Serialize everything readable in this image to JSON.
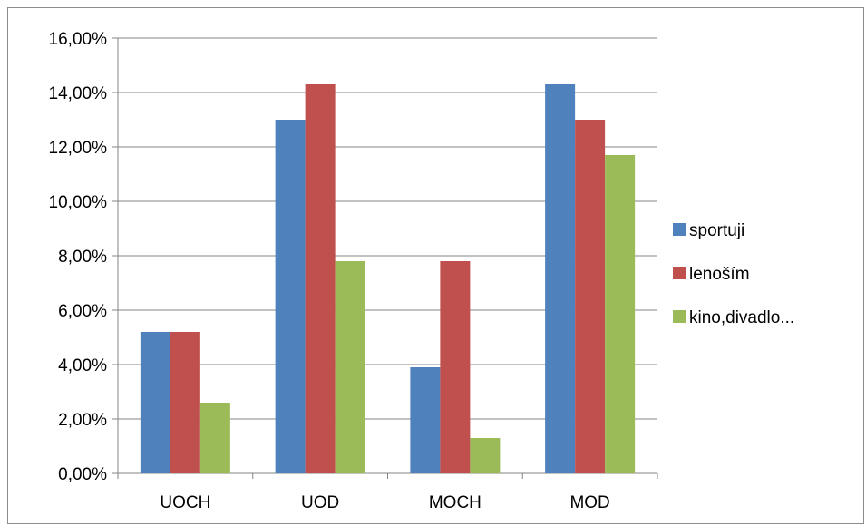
{
  "chart_data": {
    "type": "bar",
    "categories": [
      "UOCH",
      "UOD",
      "MOCH",
      "MOD"
    ],
    "series": [
      {
        "name": "sportuji",
        "color": "#4F81BD",
        "values": [
          5.2,
          13.0,
          3.9,
          14.3
        ]
      },
      {
        "name": "lenoším",
        "color": "#C0504D",
        "values": [
          5.2,
          14.3,
          7.8,
          13.0
        ]
      },
      {
        "name": "kino,divadlo...",
        "color": "#9BBB59",
        "values": [
          2.6,
          7.8,
          1.3,
          11.7
        ]
      }
    ],
    "y_ticks": [
      "0,00%",
      "2,00%",
      "4,00%",
      "6,00%",
      "8,00%",
      "10,00%",
      "12,00%",
      "14,00%",
      "16,00%"
    ],
    "ylim": [
      0,
      16
    ],
    "grid": true,
    "legend": "right"
  }
}
